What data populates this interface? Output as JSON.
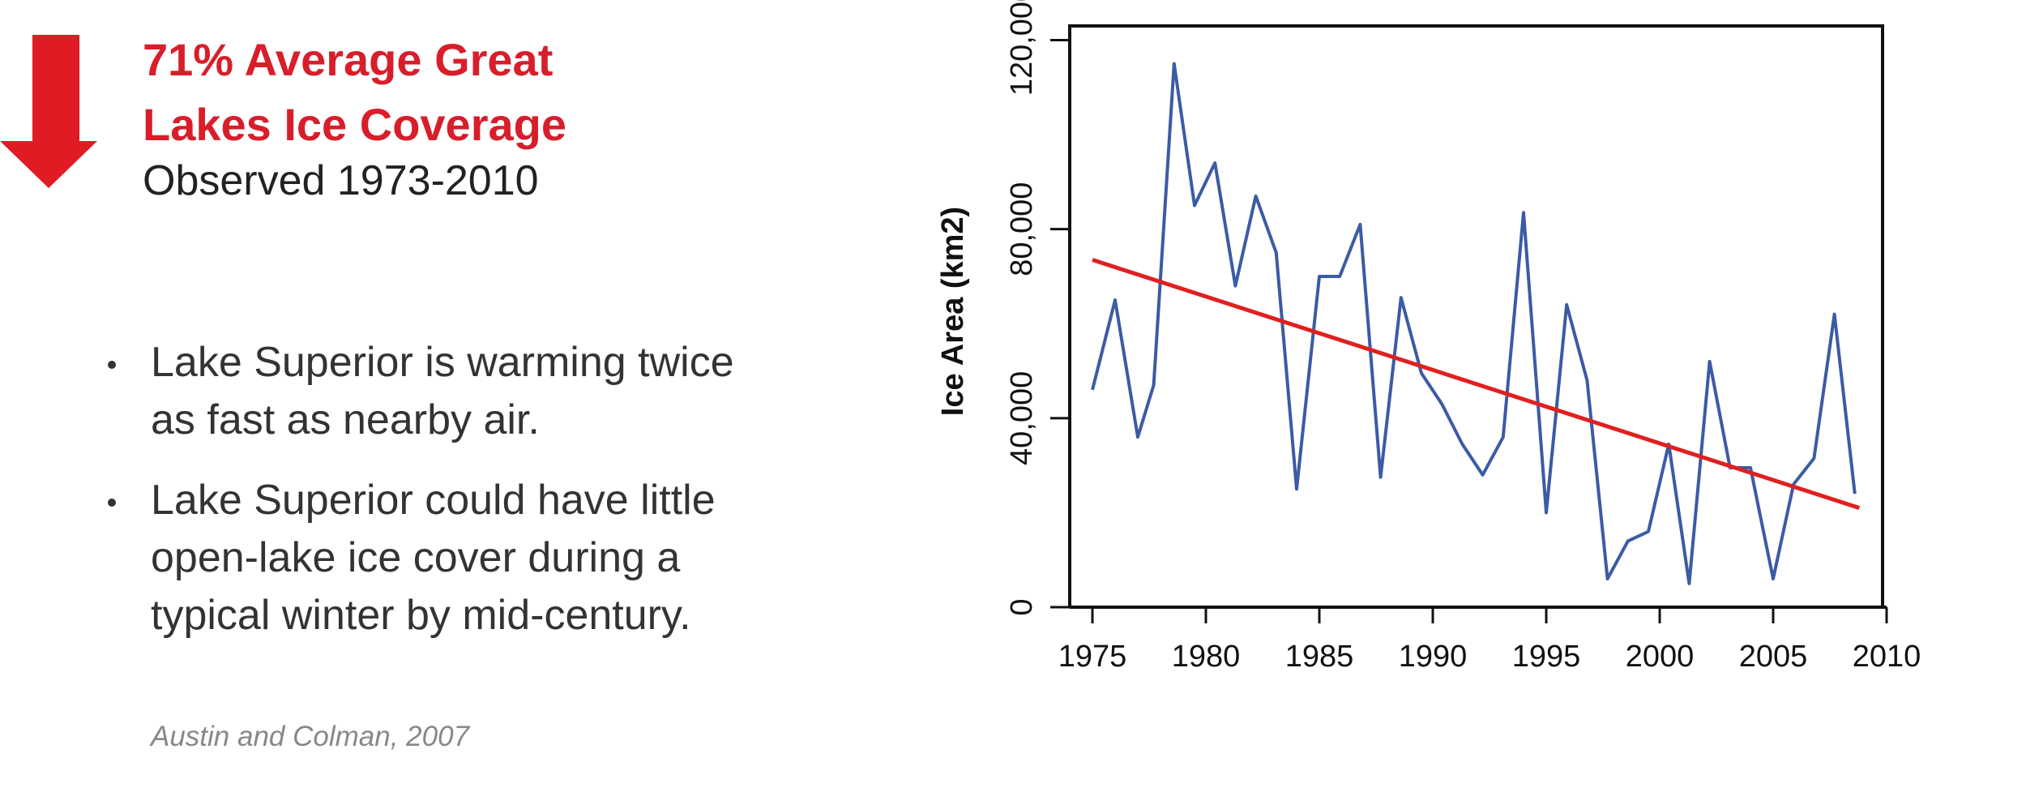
{
  "header": {
    "title_lines": [
      "71% Average Great",
      "Lakes Ice Coverage"
    ],
    "subtitle": "Observed 1973-2010"
  },
  "bullets": [
    [
      "Lake Superior is warming twice",
      "as fast as nearby air."
    ],
    [
      "Lake Superior could have little",
      "open-lake ice cover during a",
      "typical winter by mid-century."
    ]
  ],
  "source": "Austin and Colman, 2007",
  "chart_data": {
    "type": "line",
    "ylabel": "Ice Area (km2)",
    "x": [
      1975,
      1976,
      1977,
      1977.7,
      1978.6,
      1979.5,
      1980.4,
      1981.3,
      1982.2,
      1983.1,
      1984,
      1985,
      1985.9,
      1986.8,
      1987.7,
      1988.6,
      1989.5,
      1990.4,
      1991.3,
      1992.2,
      1993.1,
      1994,
      1995,
      1995.9,
      1996.8,
      1997.7,
      1998.6,
      1999.5,
      2000.4,
      2001.3,
      2002.2,
      2003.1,
      2004,
      2005,
      2005.9,
      2006.8,
      2007.7,
      2008.6
    ],
    "series": [
      {
        "color": "#3b5ba5",
        "values": [
          46000,
          65000,
          36000,
          47000,
          115000,
          85000,
          94000,
          68000,
          87000,
          75000,
          25000,
          70000,
          70000,
          81000,
          27500,
          65500,
          49500,
          43000,
          34500,
          28000,
          36000,
          83500,
          20000,
          64000,
          48000,
          6000,
          14000,
          16000,
          34500,
          5000,
          52000,
          29500,
          29500,
          6000,
          26000,
          31500,
          62000,
          24000
        ]
      }
    ],
    "trend": {
      "color": "#e02020",
      "x": [
        1975,
        2008.8
      ],
      "values": [
        73500,
        21000
      ]
    },
    "xlim": [
      1974,
      2010
    ],
    "xticks": [
      1975,
      1980,
      1985,
      1990,
      1995,
      2000,
      2005,
      2010
    ],
    "ylim": [
      0,
      123000
    ],
    "yticks": [
      0,
      {
        "value": 40000,
        "label": "40,000"
      },
      {
        "value": 80000,
        "label": "80,000"
      },
      {
        "value": 120000,
        "label": "120,000"
      }
    ]
  }
}
